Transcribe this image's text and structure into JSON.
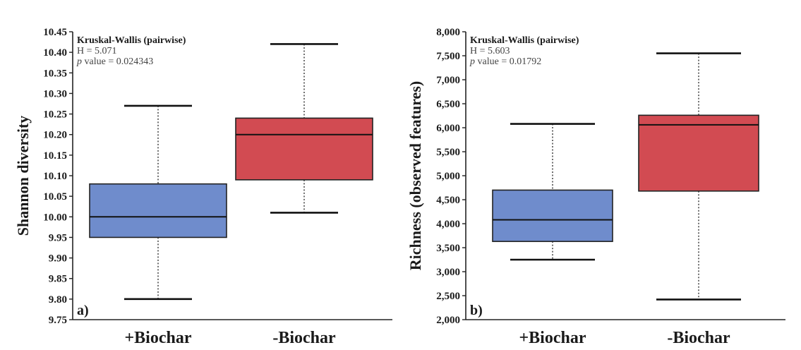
{
  "chart_data": [
    {
      "type": "box",
      "panel_label": "a)",
      "ylabel": "Shannon diversity",
      "ylim": [
        9.75,
        10.45
      ],
      "yticks": [
        9.75,
        9.8,
        9.85,
        9.9,
        9.95,
        10.0,
        10.05,
        10.1,
        10.15,
        10.2,
        10.25,
        10.3,
        10.35,
        10.4,
        10.45
      ],
      "ytick_labels": [
        "9.75",
        "9.80",
        "9.85",
        "9.90",
        "9.95",
        "10.00",
        "10.05",
        "10.10",
        "10.15",
        "10.20",
        "10.25",
        "10.30",
        "10.35",
        "10.40",
        "10.45"
      ],
      "categories": [
        "+Biochar",
        "-Biochar"
      ],
      "boxes": [
        {
          "category": "+Biochar",
          "min": 9.8,
          "q1": 9.95,
          "median": 10.0,
          "q3": 10.08,
          "max": 10.27,
          "color": "#6f8ccc"
        },
        {
          "category": "-Biochar",
          "min": 10.01,
          "q1": 10.09,
          "median": 10.2,
          "q3": 10.24,
          "max": 10.42,
          "color": "#d24b52"
        }
      ],
      "stats": {
        "title": "Kruskal-Wallis (pairwise)",
        "h_text": "H = 5.071",
        "p_italic": "p",
        "p_text": " value = 0.024343"
      },
      "grid": false
    },
    {
      "type": "box",
      "panel_label": "b)",
      "ylabel": "Richness (observed features)",
      "ylim": [
        2000,
        8000
      ],
      "yticks": [
        2000,
        2500,
        3000,
        3500,
        4000,
        4500,
        5000,
        5500,
        6000,
        6500,
        7000,
        7500,
        8000
      ],
      "ytick_labels": [
        "2,000",
        "2,500",
        "3,000",
        "3,500",
        "4,000",
        "4,500",
        "5,000",
        "5,500",
        "6,000",
        "6,500",
        "7,000",
        "7,500",
        "8,000"
      ],
      "categories": [
        "+Biochar",
        "-Biochar"
      ],
      "boxes": [
        {
          "category": "+Biochar",
          "min": 3250,
          "q1": 3630,
          "median": 4080,
          "q3": 4700,
          "max": 6080,
          "color": "#6f8ccc"
        },
        {
          "category": "-Biochar",
          "min": 2420,
          "q1": 4680,
          "median": 6060,
          "q3": 6260,
          "max": 7550,
          "color": "#d24b52"
        }
      ],
      "stats": {
        "title": "Kruskal-Wallis (pairwise)",
        "h_text": "H = 5.603",
        "p_italic": "p",
        "p_text": " value = 0.01792"
      },
      "grid": false
    }
  ]
}
